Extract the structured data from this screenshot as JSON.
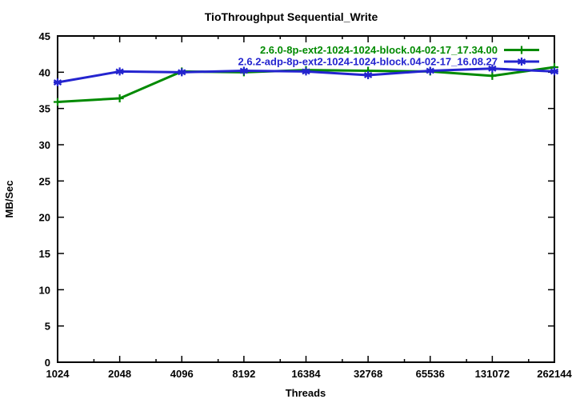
{
  "chart_data": {
    "type": "line",
    "title": "TioThroughput Sequential_Write",
    "xlabel": "Threads",
    "ylabel": "MB/Sec",
    "x_scale": "log2",
    "categories": [
      "1024",
      "2048",
      "4096",
      "8192",
      "16384",
      "32768",
      "65536",
      "131072",
      "262144"
    ],
    "ylim": [
      0,
      45
    ],
    "y_tick_step": 5,
    "grid": false,
    "legend_position": "top-right-inside",
    "axis_color": "#000000",
    "background_color": "#ffffff",
    "series": [
      {
        "name": "2.6.0-8p-ext2-1024-1024-block.04-02-17_17.34.00",
        "color": "#008a00",
        "marker": "plus",
        "values": [
          35.9,
          36.4,
          40.1,
          40.0,
          40.3,
          40.2,
          40.1,
          39.5,
          40.7
        ]
      },
      {
        "name": "2.6.2-adp-8p-ext2-1024-1024-block.04-02-17_16.08.27",
        "color": "#2424cf",
        "marker": "asterisk",
        "values": [
          38.6,
          40.1,
          40.0,
          40.2,
          40.1,
          39.6,
          40.2,
          40.5,
          40.1
        ]
      }
    ]
  }
}
